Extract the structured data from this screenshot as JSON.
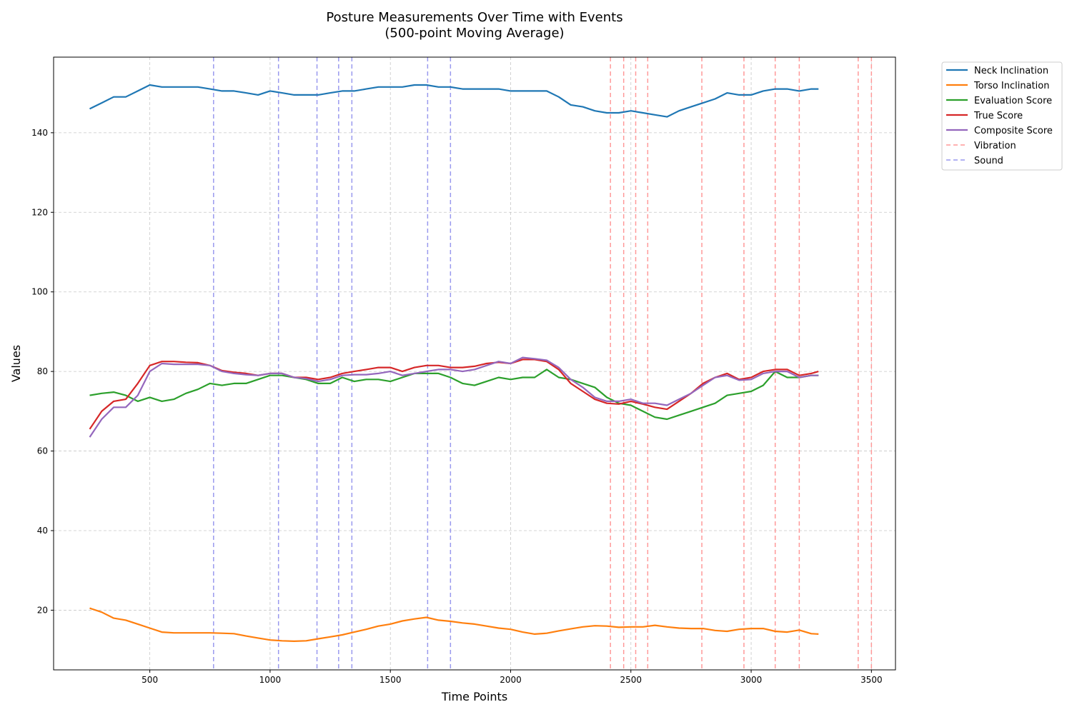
{
  "chart_data": {
    "type": "line",
    "title": "Posture Measurements Over Time with Events",
    "subtitle": "(500-point Moving Average)",
    "xlabel": "Time Points",
    "ylabel": "Values",
    "xlim": [
      100,
      3600
    ],
    "ylim": [
      5,
      159
    ],
    "xticks": [
      500,
      1000,
      1500,
      2000,
      2500,
      3000,
      3500
    ],
    "yticks": [
      20,
      40,
      60,
      80,
      100,
      120,
      140
    ],
    "grid": true,
    "legend_position": "outside-top-right",
    "series": [
      {
        "name": "Neck Inclination",
        "color": "#1f77b4",
        "points": [
          [
            250,
            146
          ],
          [
            300,
            147.5
          ],
          [
            350,
            149
          ],
          [
            400,
            149
          ],
          [
            450,
            150.5
          ],
          [
            500,
            152
          ],
          [
            550,
            151.5
          ],
          [
            600,
            151.5
          ],
          [
            650,
            151.5
          ],
          [
            700,
            151.5
          ],
          [
            750,
            151
          ],
          [
            800,
            150.5
          ],
          [
            850,
            150.5
          ],
          [
            900,
            150
          ],
          [
            950,
            149.5
          ],
          [
            1000,
            150.5
          ],
          [
            1050,
            150
          ],
          [
            1100,
            149.5
          ],
          [
            1150,
            149.5
          ],
          [
            1200,
            149.5
          ],
          [
            1250,
            150
          ],
          [
            1300,
            150.5
          ],
          [
            1350,
            150.5
          ],
          [
            1400,
            151
          ],
          [
            1450,
            151.5
          ],
          [
            1500,
            151.5
          ],
          [
            1550,
            151.5
          ],
          [
            1600,
            152
          ],
          [
            1650,
            152
          ],
          [
            1700,
            151.5
          ],
          [
            1750,
            151.5
          ],
          [
            1800,
            151
          ],
          [
            1850,
            151
          ],
          [
            1900,
            151
          ],
          [
            1950,
            151
          ],
          [
            2000,
            150.5
          ],
          [
            2050,
            150.5
          ],
          [
            2100,
            150.5
          ],
          [
            2150,
            150.5
          ],
          [
            2200,
            149
          ],
          [
            2250,
            147
          ],
          [
            2300,
            146.5
          ],
          [
            2350,
            145.5
          ],
          [
            2400,
            145
          ],
          [
            2450,
            145
          ],
          [
            2500,
            145.5
          ],
          [
            2550,
            145
          ],
          [
            2600,
            144.5
          ],
          [
            2650,
            144
          ],
          [
            2700,
            145.5
          ],
          [
            2750,
            146.5
          ],
          [
            2800,
            147.5
          ],
          [
            2850,
            148.5
          ],
          [
            2900,
            150
          ],
          [
            2950,
            149.5
          ],
          [
            3000,
            149.5
          ],
          [
            3050,
            150.5
          ],
          [
            3100,
            151
          ],
          [
            3150,
            151
          ],
          [
            3200,
            150.5
          ],
          [
            3250,
            151
          ],
          [
            3280,
            151
          ]
        ]
      },
      {
        "name": "Torso Inclination",
        "color": "#ff7f0e",
        "points": [
          [
            250,
            20.5
          ],
          [
            300,
            19.5
          ],
          [
            350,
            18
          ],
          [
            400,
            17.5
          ],
          [
            450,
            16.5
          ],
          [
            500,
            15.5
          ],
          [
            550,
            14.5
          ],
          [
            600,
            14.3
          ],
          [
            650,
            14.3
          ],
          [
            700,
            14.3
          ],
          [
            750,
            14.3
          ],
          [
            800,
            14.2
          ],
          [
            850,
            14.1
          ],
          [
            900,
            13.5
          ],
          [
            950,
            13
          ],
          [
            1000,
            12.5
          ],
          [
            1050,
            12.3
          ],
          [
            1100,
            12.2
          ],
          [
            1150,
            12.3
          ],
          [
            1200,
            12.8
          ],
          [
            1250,
            13.3
          ],
          [
            1300,
            13.8
          ],
          [
            1350,
            14.5
          ],
          [
            1400,
            15.2
          ],
          [
            1450,
            16
          ],
          [
            1500,
            16.5
          ],
          [
            1550,
            17.3
          ],
          [
            1600,
            17.8
          ],
          [
            1650,
            18.2
          ],
          [
            1700,
            17.5
          ],
          [
            1750,
            17.2
          ],
          [
            1800,
            16.8
          ],
          [
            1850,
            16.5
          ],
          [
            1900,
            16
          ],
          [
            1950,
            15.5
          ],
          [
            2000,
            15.2
          ],
          [
            2050,
            14.5
          ],
          [
            2100,
            14
          ],
          [
            2150,
            14.2
          ],
          [
            2200,
            14.8
          ],
          [
            2250,
            15.3
          ],
          [
            2300,
            15.8
          ],
          [
            2350,
            16.1
          ],
          [
            2400,
            16
          ],
          [
            2450,
            15.7
          ],
          [
            2500,
            15.8
          ],
          [
            2550,
            15.8
          ],
          [
            2600,
            16.2
          ],
          [
            2650,
            15.8
          ],
          [
            2700,
            15.5
          ],
          [
            2750,
            15.4
          ],
          [
            2800,
            15.4
          ],
          [
            2850,
            14.9
          ],
          [
            2900,
            14.7
          ],
          [
            2950,
            15.2
          ],
          [
            3000,
            15.4
          ],
          [
            3050,
            15.4
          ],
          [
            3100,
            14.7
          ],
          [
            3150,
            14.5
          ],
          [
            3200,
            15
          ],
          [
            3250,
            14.1
          ],
          [
            3280,
            14
          ]
        ]
      },
      {
        "name": "Evaluation Score",
        "color": "#2ca02c",
        "points": [
          [
            250,
            74
          ],
          [
            300,
            74.5
          ],
          [
            350,
            74.8
          ],
          [
            400,
            74
          ],
          [
            450,
            72.5
          ],
          [
            500,
            73.5
          ],
          [
            550,
            72.5
          ],
          [
            600,
            73
          ],
          [
            650,
            74.5
          ],
          [
            700,
            75.5
          ],
          [
            750,
            77
          ],
          [
            800,
            76.5
          ],
          [
            850,
            77
          ],
          [
            900,
            77
          ],
          [
            950,
            78
          ],
          [
            1000,
            79
          ],
          [
            1050,
            79
          ],
          [
            1100,
            78.5
          ],
          [
            1150,
            78
          ],
          [
            1200,
            77
          ],
          [
            1250,
            77
          ],
          [
            1300,
            78.5
          ],
          [
            1350,
            77.5
          ],
          [
            1400,
            78
          ],
          [
            1450,
            78
          ],
          [
            1500,
            77.5
          ],
          [
            1550,
            78.5
          ],
          [
            1600,
            79.5
          ],
          [
            1650,
            79.5
          ],
          [
            1700,
            79.5
          ],
          [
            1750,
            78.5
          ],
          [
            1800,
            77
          ],
          [
            1850,
            76.5
          ],
          [
            1900,
            77.5
          ],
          [
            1950,
            78.5
          ],
          [
            2000,
            78
          ],
          [
            2050,
            78.5
          ],
          [
            2100,
            78.5
          ],
          [
            2150,
            80.5
          ],
          [
            2200,
            78.5
          ],
          [
            2250,
            78
          ],
          [
            2300,
            77
          ],
          [
            2350,
            76
          ],
          [
            2400,
            73.5
          ],
          [
            2450,
            72
          ],
          [
            2500,
            71.5
          ],
          [
            2550,
            70
          ],
          [
            2600,
            68.5
          ],
          [
            2650,
            68
          ],
          [
            2700,
            69
          ],
          [
            2750,
            70
          ],
          [
            2800,
            71
          ],
          [
            2850,
            72
          ],
          [
            2900,
            74
          ],
          [
            2950,
            74.5
          ],
          [
            3000,
            75
          ],
          [
            3050,
            76.5
          ],
          [
            3100,
            80
          ],
          [
            3150,
            78.5
          ],
          [
            3200,
            78.5
          ],
          [
            3250,
            79
          ],
          [
            3280,
            79
          ]
        ]
      },
      {
        "name": "True Score",
        "color": "#d62728",
        "points": [
          [
            250,
            65.5
          ],
          [
            300,
            70
          ],
          [
            350,
            72.5
          ],
          [
            400,
            73
          ],
          [
            450,
            77
          ],
          [
            500,
            81.5
          ],
          [
            550,
            82.5
          ],
          [
            600,
            82.5
          ],
          [
            650,
            82.3
          ],
          [
            700,
            82.2
          ],
          [
            750,
            81.5
          ],
          [
            800,
            80.2
          ],
          [
            850,
            79.8
          ],
          [
            900,
            79.5
          ],
          [
            950,
            79
          ],
          [
            1000,
            79.5
          ],
          [
            1050,
            79.5
          ],
          [
            1100,
            78.5
          ],
          [
            1150,
            78.5
          ],
          [
            1200,
            78
          ],
          [
            1250,
            78.5
          ],
          [
            1300,
            79.5
          ],
          [
            1350,
            80
          ],
          [
            1400,
            80.5
          ],
          [
            1450,
            81
          ],
          [
            1500,
            81
          ],
          [
            1550,
            80
          ],
          [
            1600,
            81
          ],
          [
            1650,
            81.5
          ],
          [
            1700,
            81.5
          ],
          [
            1750,
            81
          ],
          [
            1800,
            81
          ],
          [
            1850,
            81.3
          ],
          [
            1900,
            82
          ],
          [
            1950,
            82.3
          ],
          [
            2000,
            82
          ],
          [
            2050,
            83
          ],
          [
            2100,
            83
          ],
          [
            2150,
            82.5
          ],
          [
            2200,
            80.5
          ],
          [
            2250,
            77
          ],
          [
            2300,
            75
          ],
          [
            2350,
            73
          ],
          [
            2400,
            72
          ],
          [
            2450,
            71.8
          ],
          [
            2500,
            72.5
          ],
          [
            2550,
            71.8
          ],
          [
            2600,
            71
          ],
          [
            2650,
            70.5
          ],
          [
            2700,
            72.5
          ],
          [
            2750,
            74.5
          ],
          [
            2800,
            77
          ],
          [
            2850,
            78.5
          ],
          [
            2900,
            79.5
          ],
          [
            2950,
            78
          ],
          [
            3000,
            78.5
          ],
          [
            3050,
            80
          ],
          [
            3100,
            80.5
          ],
          [
            3150,
            80.5
          ],
          [
            3200,
            79
          ],
          [
            3250,
            79.5
          ],
          [
            3280,
            80
          ]
        ]
      },
      {
        "name": "Composite Score",
        "color": "#9467bd",
        "points": [
          [
            250,
            63.5
          ],
          [
            300,
            68
          ],
          [
            350,
            71
          ],
          [
            400,
            71
          ],
          [
            450,
            74
          ],
          [
            500,
            80
          ],
          [
            550,
            82
          ],
          [
            600,
            81.8
          ],
          [
            650,
            81.8
          ],
          [
            700,
            81.8
          ],
          [
            750,
            81.5
          ],
          [
            800,
            80
          ],
          [
            850,
            79.5
          ],
          [
            900,
            79.2
          ],
          [
            950,
            79
          ],
          [
            1000,
            79.5
          ],
          [
            1050,
            79.5
          ],
          [
            1100,
            78.5
          ],
          [
            1150,
            78.2
          ],
          [
            1200,
            77.5
          ],
          [
            1250,
            78
          ],
          [
            1300,
            79
          ],
          [
            1350,
            79.2
          ],
          [
            1400,
            79.2
          ],
          [
            1450,
            79.5
          ],
          [
            1500,
            80
          ],
          [
            1550,
            79
          ],
          [
            1600,
            79.5
          ],
          [
            1650,
            80
          ],
          [
            1700,
            80.5
          ],
          [
            1750,
            80.5
          ],
          [
            1800,
            80
          ],
          [
            1850,
            80.5
          ],
          [
            1900,
            81.5
          ],
          [
            1950,
            82.5
          ],
          [
            2000,
            82
          ],
          [
            2050,
            83.5
          ],
          [
            2100,
            83.2
          ],
          [
            2150,
            82.8
          ],
          [
            2200,
            81
          ],
          [
            2250,
            78
          ],
          [
            2300,
            76
          ],
          [
            2350,
            73.5
          ],
          [
            2400,
            72.5
          ],
          [
            2450,
            72.5
          ],
          [
            2500,
            73
          ],
          [
            2550,
            72
          ],
          [
            2600,
            72
          ],
          [
            2650,
            71.5
          ],
          [
            2700,
            73
          ],
          [
            2750,
            74.5
          ],
          [
            2800,
            76.5
          ],
          [
            2850,
            78.5
          ],
          [
            2900,
            79
          ],
          [
            2950,
            77.8
          ],
          [
            3000,
            78
          ],
          [
            3050,
            79.5
          ],
          [
            3100,
            80
          ],
          [
            3150,
            80
          ],
          [
            3200,
            78.5
          ],
          [
            3250,
            79
          ],
          [
            3280,
            79
          ]
        ]
      }
    ],
    "events": [
      {
        "name": "Vibration",
        "color": "#ff9999",
        "x": [
          2415,
          2470,
          2520,
          2570,
          2795,
          2970,
          3100,
          3200,
          3445,
          3500
        ]
      },
      {
        "name": "Sound",
        "color": "#9999ee",
        "x": [
          765,
          1035,
          1195,
          1285,
          1340,
          1655,
          1750
        ]
      }
    ]
  }
}
